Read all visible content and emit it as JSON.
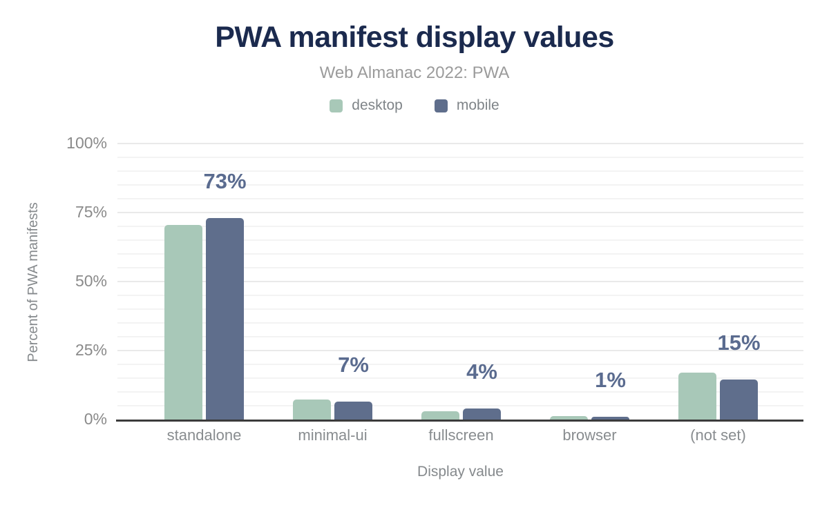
{
  "header": {
    "title": "PWA manifest display values",
    "subtitle": "Web Almanac 2022: PWA"
  },
  "chart_data": {
    "type": "bar",
    "title": "PWA manifest display values",
    "subtitle": "Web Almanac 2022: PWA",
    "categories": [
      "standalone",
      "minimal-ui",
      "fullscreen",
      "browser",
      "(not set)"
    ],
    "series": [
      {
        "name": "desktop",
        "color": "#a8c8b8",
        "values": [
          70.5,
          7.3,
          2.9,
          1.2,
          17.0
        ]
      },
      {
        "name": "mobile",
        "color": "#5f6e8c",
        "values": [
          73.0,
          6.5,
          4.0,
          1.1,
          14.6
        ]
      }
    ],
    "data_labels": [
      "73%",
      "7%",
      "4%",
      "1%",
      "15%"
    ],
    "data_label_series": "mobile",
    "xlabel": "Display value",
    "ylabel": "Percent of PWA manifests",
    "ylim": [
      0,
      100
    ],
    "yticks": [
      {
        "value": 0,
        "label": "0%"
      },
      {
        "value": 25,
        "label": "25%"
      },
      {
        "value": 50,
        "label": "50%"
      },
      {
        "value": 75,
        "label": "75%"
      },
      {
        "value": 100,
        "label": "100%"
      }
    ],
    "grid": {
      "minor_step": 5,
      "major_step": 25,
      "minor_color": "#f3f3f3",
      "major_color": "#e9e9e9"
    },
    "legend_position": "top"
  },
  "colors": {
    "title": "#1b2a4e",
    "subtitle": "#9b9b9b",
    "axis_text": "#8a8a8a",
    "axis_line": "#3b3b3b",
    "data_label": "#5a6b8f",
    "desktop": "#a8c8b8",
    "mobile": "#5f6e8c",
    "background": "#ffffff"
  }
}
